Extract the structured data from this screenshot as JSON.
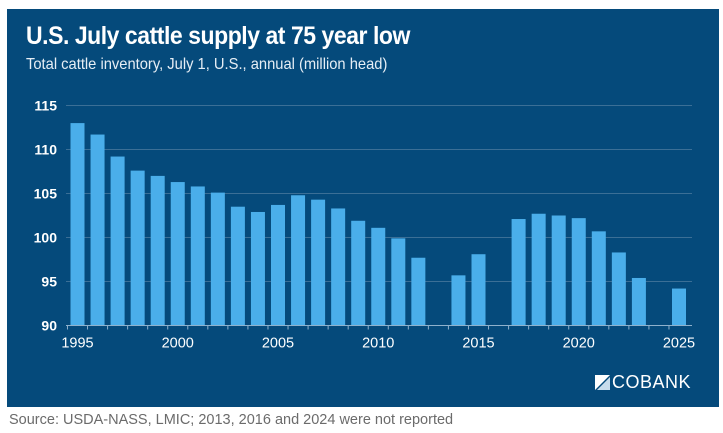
{
  "colors": {
    "background_panel": "#054a7b",
    "bar": "#4aaeea",
    "gridline": "#3b6f96",
    "text": "#ffffff",
    "source_text": "#6b6b6b"
  },
  "logo": {
    "text": "COBANK",
    "icon": "cobank-logo-icon"
  },
  "source": "Source: USDA-NASS, LMIC; 2013, 2016 and 2024 were not reported",
  "chart_data": {
    "type": "bar",
    "title": "U.S. July cattle supply at 75 year low",
    "subtitle": "Total cattle inventory, July 1, U.S., annual (million head)",
    "xlabel": "",
    "ylabel": "",
    "ylim": [
      90,
      115
    ],
    "yticks": [
      "90",
      "95",
      "100",
      "105",
      "110",
      "115"
    ],
    "xlim": [
      1995,
      2025
    ],
    "xticks": [
      "1995",
      "2000",
      "2005",
      "2010",
      "2015",
      "2020",
      "2025"
    ],
    "grid": true,
    "legend": "none",
    "categories": [
      1995,
      1996,
      1997,
      1998,
      1999,
      2000,
      2001,
      2002,
      2003,
      2004,
      2005,
      2006,
      2007,
      2008,
      2009,
      2010,
      2011,
      2012,
      2013,
      2014,
      2015,
      2016,
      2017,
      2018,
      2019,
      2020,
      2021,
      2022,
      2023,
      2024,
      2025
    ],
    "values": [
      113.0,
      111.7,
      109.2,
      107.6,
      107.0,
      106.3,
      105.8,
      105.1,
      103.5,
      102.9,
      103.7,
      104.8,
      104.3,
      103.3,
      101.9,
      101.1,
      99.9,
      97.7,
      null,
      95.7,
      98.1,
      null,
      102.1,
      102.7,
      102.5,
      102.2,
      100.7,
      98.3,
      95.4,
      null,
      94.2
    ]
  }
}
